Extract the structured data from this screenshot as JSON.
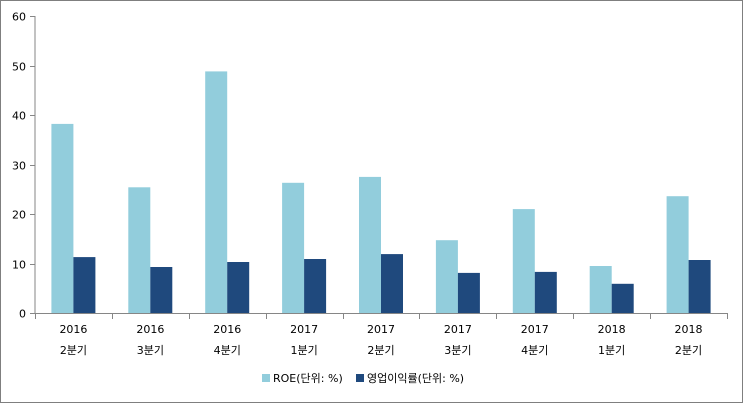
{
  "chart_data": {
    "type": "bar",
    "categories": [
      [
        "2016",
        "2분기"
      ],
      [
        "2016",
        "3분기"
      ],
      [
        "2016",
        "4분기"
      ],
      [
        "2017",
        "1분기"
      ],
      [
        "2017",
        "2분기"
      ],
      [
        "2017",
        "3분기"
      ],
      [
        "2017",
        "4분기"
      ],
      [
        "2018",
        "1분기"
      ],
      [
        "2018",
        "2분기"
      ]
    ],
    "series": [
      {
        "name": "ROE(단위: %)",
        "color": "#92cddc",
        "values": [
          38.2,
          25.4,
          48.8,
          26.3,
          27.5,
          14.7,
          21.0,
          9.5,
          23.6
        ]
      },
      {
        "name": "영업이익률(단위: %)",
        "color": "#1f497d",
        "values": [
          11.3,
          9.3,
          10.3,
          10.9,
          11.9,
          8.1,
          8.3,
          5.9,
          10.7
        ]
      }
    ],
    "ylim": [
      0,
      60
    ],
    "yticks": [
      0,
      10,
      20,
      30,
      40,
      50,
      60
    ],
    "grid": false,
    "legend_position": "bottom",
    "title": "",
    "xlabel": "",
    "ylabel": ""
  }
}
